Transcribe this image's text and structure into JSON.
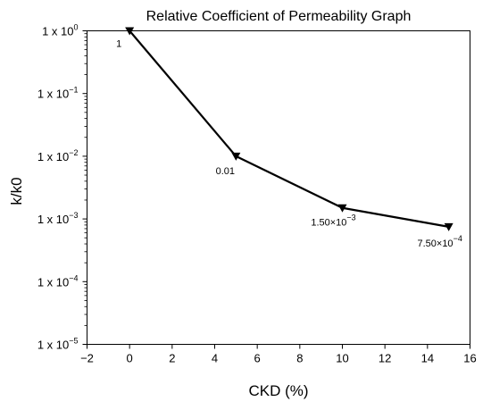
{
  "chart_data": {
    "type": "line",
    "title": "Relative Coefficient of Permeability Graph",
    "xlabel": "CKD (%)",
    "ylabel": "k/k0",
    "xlim": [
      -2,
      16
    ],
    "ylim": [
      1e-05,
      1
    ],
    "y_scale": "log",
    "grid": false,
    "legend": "none",
    "marker": "down-triangle",
    "line_color": "#000000",
    "x_ticks": [
      "−2",
      "0",
      "2",
      "4",
      "6",
      "8",
      "10",
      "12",
      "14",
      "16"
    ],
    "x_tick_values": [
      -2,
      0,
      2,
      4,
      6,
      8,
      10,
      12,
      14,
      16
    ],
    "y_ticks": [
      {
        "base": "1 x 10",
        "exp": "0"
      },
      {
        "base": "1 x 10",
        "exp": "−1"
      },
      {
        "base": "1 x 10",
        "exp": "−2"
      },
      {
        "base": "1 x 10",
        "exp": "−3"
      },
      {
        "base": "1 x 10",
        "exp": "−4"
      },
      {
        "base": "1 x 10",
        "exp": "−5"
      }
    ],
    "y_tick_exponents": [
      0,
      -1,
      -2,
      -3,
      -4,
      -5
    ],
    "series": [
      {
        "x": [
          0,
          5,
          10,
          15
        ],
        "y": [
          1,
          0.01,
          0.0015,
          0.00075
        ],
        "labels": [
          {
            "base": "1",
            "exp": ""
          },
          {
            "base": "0.01",
            "exp": ""
          },
          {
            "base": "1.50×10",
            "exp": "−3"
          },
          {
            "base": "7.50×10",
            "exp": "−4"
          }
        ]
      }
    ]
  }
}
